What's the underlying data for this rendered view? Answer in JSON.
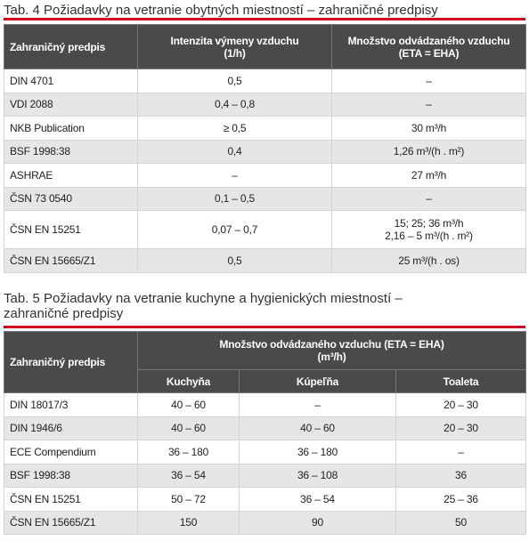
{
  "table4": {
    "title": "Tab. 4 Požiadavky na vetranie obytných miestností – zahraničné predpisy",
    "header": [
      "Zahraničný predpis",
      [
        "Intenzita výmeny vzduchu",
        "(1/h)"
      ],
      [
        "Množstvo odvádzaného vzduchu",
        "(ETA = EHA)"
      ]
    ],
    "rows": [
      [
        "DIN 4701",
        "0,5",
        "–"
      ],
      [
        "VDI 2088",
        "0,4 – 0,8",
        "–"
      ],
      [
        "NKB Publication",
        "≥ 0,5",
        "30 m³/h"
      ],
      [
        "BSF 1998:38",
        "0,4",
        "1,26 m³/(h . m²)"
      ],
      [
        "ASHRAE",
        "–",
        "27 m³/h"
      ],
      [
        "ČSN 73 0540",
        "0,1 – 0,5",
        "–"
      ],
      [
        "ČSN EN 15251",
        "0,07 – 0,7",
        [
          "15; 25; 36 m³/h",
          "2,16 – 5 m³/(h . m²)"
        ]
      ],
      [
        "ČSN EN 15665/Z1",
        "0,5",
        "25 m³/(h . os)"
      ]
    ]
  },
  "table5": {
    "title": [
      "Tab. 5 Požiadavky na vetranie kuchyne a hygienických miestností –",
      "zahraničné predpisy"
    ],
    "header": [
      "Zahraničný predpis",
      [
        "Množstvo odvádzaného vzduchu (ETA = EHA)",
        "(m³/h)"
      ]
    ],
    "subheader": [
      "Kuchyňa",
      "Kúpeľňa",
      "Toaleta"
    ],
    "rows": [
      [
        "DIN 18017/3",
        "40 – 60",
        "–",
        "20 – 30"
      ],
      [
        "DIN 1946/6",
        "40 – 60",
        "40 – 60",
        "20 – 30"
      ],
      [
        "ECE Compendium",
        "36 – 180",
        "36 – 180",
        "–"
      ],
      [
        "BSF 1998:38",
        "36 – 54",
        "36 – 108",
        "36"
      ],
      [
        "ČSN EN 15251",
        "50 – 72",
        "36 – 54",
        "25 – 36"
      ],
      [
        "ČSN EN 15665/Z1",
        "150",
        "90",
        "50"
      ]
    ]
  }
}
